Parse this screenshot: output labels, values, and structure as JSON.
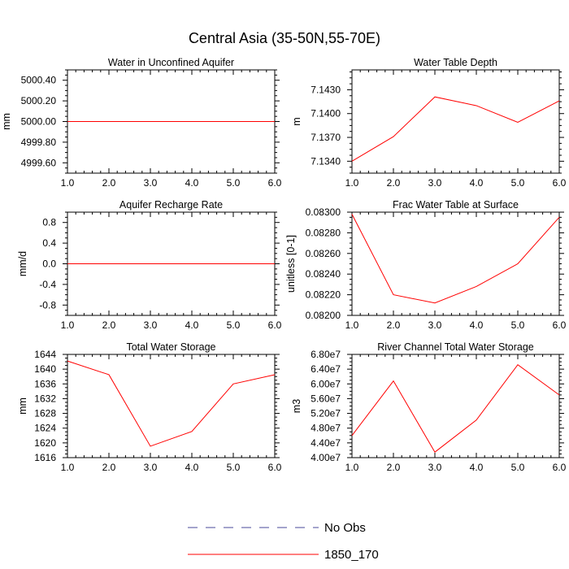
{
  "figure": {
    "title": "Central Asia (35-50N,55-70E)"
  },
  "chart_data": [
    {
      "type": "line",
      "title": "Water in Unconfined Aquifer",
      "xlabel": "",
      "ylabel": "mm",
      "xlim": [
        1,
        6
      ],
      "ylim": [
        4999.5,
        5000.5
      ],
      "xticks": [
        1,
        2,
        3,
        4,
        5,
        6
      ],
      "xtick_labels": [
        "1.0",
        "2.0",
        "3.0",
        "4.0",
        "5.0",
        "6.0"
      ],
      "yticks": [
        4999.6,
        4999.8,
        5000.0,
        5000.2,
        5000.4
      ],
      "ytick_labels": [
        "4999.60",
        "4999.80",
        "5000.00",
        "5000.20",
        "5000.40"
      ],
      "series": [
        {
          "name": "1850_170",
          "color": "#ff0000",
          "x": [
            1,
            2,
            3,
            4,
            5,
            6
          ],
          "values": [
            5000.0,
            5000.0,
            5000.0,
            5000.0,
            5000.0,
            5000.0
          ]
        }
      ]
    },
    {
      "type": "line",
      "title": "Water Table Depth",
      "xlabel": "",
      "ylabel": "m",
      "xlim": [
        1,
        6
      ],
      "ylim": [
        7.1325,
        7.1455
      ],
      "xticks": [
        1,
        2,
        3,
        4,
        5,
        6
      ],
      "xtick_labels": [
        "1.0",
        "2.0",
        "3.0",
        "4.0",
        "5.0",
        "6.0"
      ],
      "yticks": [
        7.134,
        7.137,
        7.14,
        7.143
      ],
      "ytick_labels": [
        "7.1340",
        "7.1370",
        "7.1400",
        "7.1430"
      ],
      "series": [
        {
          "name": "1850_170",
          "color": "#ff0000",
          "x": [
            1,
            2,
            3,
            4,
            5,
            6
          ],
          "values": [
            7.134,
            7.1371,
            7.1421,
            7.141,
            7.1389,
            7.1416
          ]
        }
      ]
    },
    {
      "type": "line",
      "title": "Aquifer Recharge Rate",
      "xlabel": "",
      "ylabel": "mm/d",
      "xlim": [
        1,
        6
      ],
      "ylim": [
        -1.0,
        1.0
      ],
      "xticks": [
        1,
        2,
        3,
        4,
        5,
        6
      ],
      "xtick_labels": [
        "1.0",
        "2.0",
        "3.0",
        "4.0",
        "5.0",
        "6.0"
      ],
      "yticks": [
        -0.8,
        -0.4,
        0.0,
        0.4,
        0.8
      ],
      "ytick_labels": [
        "-0.8",
        "-0.4",
        "0.0",
        "0.4",
        "0.8"
      ],
      "series": [
        {
          "name": "1850_170",
          "color": "#ff0000",
          "x": [
            1,
            2,
            3,
            4,
            5,
            6
          ],
          "values": [
            0,
            0,
            0,
            0,
            0,
            0
          ]
        }
      ]
    },
    {
      "type": "line",
      "title": "Frac Water Table at Surface",
      "xlabel": "",
      "ylabel": "unitless [0-1]",
      "xlim": [
        1,
        6
      ],
      "ylim": [
        0.082,
        0.083
      ],
      "xticks": [
        1,
        2,
        3,
        4,
        5,
        6
      ],
      "xtick_labels": [
        "1.0",
        "2.0",
        "3.0",
        "4.0",
        "5.0",
        "6.0"
      ],
      "yticks": [
        0.082,
        0.0822,
        0.0824,
        0.0826,
        0.0828,
        0.083
      ],
      "ytick_labels": [
        "0.08200",
        "0.08220",
        "0.08240",
        "0.08260",
        "0.08280",
        "0.08300"
      ],
      "series": [
        {
          "name": "1850_170",
          "color": "#ff0000",
          "x": [
            1,
            2,
            3,
            4,
            5,
            6
          ],
          "values": [
            0.08298,
            0.0822,
            0.08212,
            0.08228,
            0.0825,
            0.08295
          ]
        }
      ]
    },
    {
      "type": "line",
      "title": "Total Water Storage",
      "xlabel": "",
      "ylabel": "mm",
      "xlim": [
        1,
        6
      ],
      "ylim": [
        1616,
        1644
      ],
      "xticks": [
        1,
        2,
        3,
        4,
        5,
        6
      ],
      "xtick_labels": [
        "1.0",
        "2.0",
        "3.0",
        "4.0",
        "5.0",
        "6.0"
      ],
      "yticks": [
        1616,
        1620,
        1624,
        1628,
        1632,
        1636,
        1640,
        1644
      ],
      "ytick_labels": [
        "1616",
        "1620",
        "1624",
        "1628",
        "1632",
        "1636",
        "1640",
        "1644"
      ],
      "series": [
        {
          "name": "1850_170",
          "color": "#ff0000",
          "x": [
            1,
            2,
            3,
            4,
            5,
            6
          ],
          "values": [
            1642.2,
            1638.5,
            1619.1,
            1623.1,
            1636.0,
            1638.5
          ]
        }
      ]
    },
    {
      "type": "line",
      "title": "River Channel Total Water Storage",
      "xlabel": "",
      "ylabel": "m3",
      "xlim": [
        1,
        6
      ],
      "ylim": [
        40000000,
        68000000
      ],
      "xticks": [
        1,
        2,
        3,
        4,
        5,
        6
      ],
      "xtick_labels": [
        "1.0",
        "2.0",
        "3.0",
        "4.0",
        "5.0",
        "6.0"
      ],
      "yticks": [
        40000000,
        44000000,
        48000000,
        52000000,
        56000000,
        60000000,
        64000000,
        68000000
      ],
      "ytick_labels": [
        "4.00e7",
        "4.40e7",
        "4.80e7",
        "5.20e7",
        "5.60e7",
        "6.00e7",
        "6.40e7",
        "6.80e7"
      ],
      "series": [
        {
          "name": "1850_170",
          "color": "#ff0000",
          "x": [
            1,
            2,
            3,
            4,
            5,
            6
          ],
          "values": [
            46000000,
            60800000,
            41500000,
            50200000,
            65200000,
            57000000
          ]
        }
      ]
    }
  ],
  "legend": {
    "position": "bottom-center",
    "items": [
      {
        "label": "No Obs",
        "style": "dashed",
        "color": "#4a4a9a"
      },
      {
        "label": "1850_170",
        "style": "solid",
        "color": "#ff0000"
      }
    ]
  }
}
